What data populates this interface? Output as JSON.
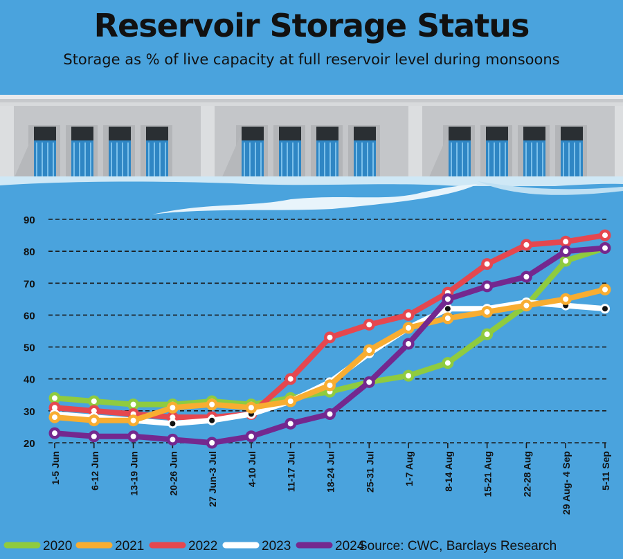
{
  "title": "Reservoir Storage Status",
  "subtitle": "Storage as % of live capacity at full reservoir level during monsoons",
  "source": "Source: CWC, Barclays Research",
  "chart_data": {
    "type": "line",
    "title": "Reservoir Storage Status",
    "subtitle": "Storage as % of live capacity at full reservoir level during monsoons",
    "xlabel": "",
    "ylabel": "",
    "ylim": [
      20,
      90
    ],
    "yticks": [
      20,
      30,
      40,
      50,
      60,
      70,
      80,
      90
    ],
    "grid": true,
    "legend_position": "bottom",
    "categories": [
      "1-5 Jun",
      "6-12 Jun",
      "13-19 Jun",
      "20-26 Jun",
      "27 Jun-3 Jul",
      "4-10 Jul",
      "11-17 Jul",
      "18-24 Jul",
      "25-31 Jul",
      "1-7 Aug",
      "8-14 Aug",
      "15-21 Aug",
      "22-28 Aug",
      "29 Aug- 4 Sep",
      "5-11 Sep"
    ],
    "series": [
      {
        "name": "2020",
        "color": "#8fcb3f",
        "values": [
          34,
          33,
          32,
          32,
          33,
          32,
          34,
          36,
          39,
          41,
          45,
          54,
          63,
          77,
          81
        ]
      },
      {
        "name": "2022",
        "color": "#e5474f",
        "values": [
          31,
          30,
          29,
          28,
          28,
          29,
          40,
          53,
          57,
          60,
          67,
          76,
          82,
          83,
          85
        ]
      },
      {
        "name": "2023",
        "color": "#ffffff",
        "values": [
          29,
          28,
          27,
          26,
          27,
          29,
          33,
          39,
          48,
          56,
          62,
          62,
          64,
          63,
          62
        ]
      },
      {
        "name": "2021",
        "color": "#f8ad31",
        "values": [
          28,
          27,
          27,
          31,
          32,
          31,
          33,
          38,
          49,
          56,
          59,
          61,
          63,
          65,
          68
        ]
      },
      {
        "name": "2024",
        "color": "#74288f",
        "values": [
          23,
          22,
          22,
          21,
          20,
          22,
          26,
          29,
          39,
          51,
          65,
          69,
          72,
          80,
          81
        ]
      }
    ],
    "legend": [
      "2020",
      "2021",
      "2022",
      "2023",
      "2024"
    ]
  }
}
